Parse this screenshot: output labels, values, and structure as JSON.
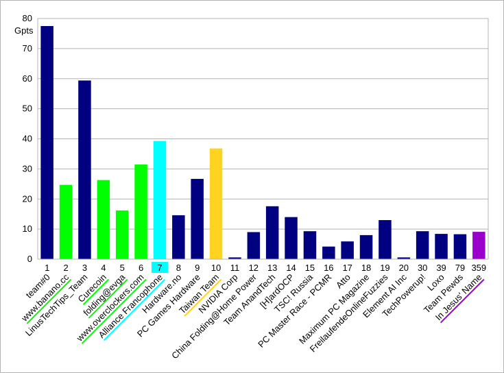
{
  "chart_data": {
    "type": "bar",
    "ylabel": "Gpts",
    "ylim": [
      0,
      80
    ],
    "yticks": [
      0,
      10,
      20,
      30,
      40,
      50,
      60,
      70,
      80
    ],
    "grid": true,
    "ranks": [
      "1",
      "2",
      "3",
      "4",
      "5",
      "6",
      "7",
      "8",
      "9",
      "10",
      "11",
      "12",
      "13",
      "14",
      "15",
      "16",
      "17",
      "18",
      "19",
      "20",
      "30",
      "39",
      "79",
      "359"
    ],
    "teams": [
      "team#0",
      "www.banano.cc",
      "LinusTechTips_Team",
      "Curecoin",
      "folding@evga",
      "www.overclockers.com",
      "Alliance Francophone",
      "Hardware.no",
      "PC Games Hardware",
      "Taiwan Team",
      "NVIDIA Corp",
      "China Folding@Home Power",
      "Team AnandTech",
      "[H]ardOCP",
      "TSC! Russia",
      "PC Master Race - PCMR",
      "Atto",
      "Maximum PC Magazine",
      "FreilaufendeOnlineFuzzies",
      "Element AI Inc",
      "TechPowerup!",
      "Loxo",
      "Team Pewds",
      "In Jesus' Name"
    ],
    "values": [
      77.5,
      24.7,
      59.4,
      26.3,
      16.2,
      31.5,
      39.3,
      14.6,
      26.7,
      36.8,
      0.6,
      9.0,
      17.6,
      14.0,
      9.3,
      4.2,
      5.9,
      8.0,
      13.0,
      0.6,
      9.3,
      8.4,
      8.3,
      9.1
    ],
    "bar_colors": [
      "#000080",
      "#00ff00",
      "#000080",
      "#00ff00",
      "#00ff00",
      "#00ff00",
      "#00ffff",
      "#000080",
      "#000080",
      "#ffd320",
      "#000080",
      "#000080",
      "#000080",
      "#000080",
      "#000080",
      "#000080",
      "#000080",
      "#000080",
      "#000080",
      "#000080",
      "#000080",
      "#000080",
      "#000080",
      "#9900cc"
    ],
    "underline_colors": [
      "",
      "#00ff00",
      "",
      "#00ff00",
      "#00ff00",
      "#00ff00",
      "#00ffff",
      "",
      "",
      "#ffd320",
      "",
      "",
      "",
      "",
      "",
      "",
      "",
      "",
      "",
      "",
      "",
      "",
      "",
      "#9900cc"
    ],
    "highlighted_rank_index": 6,
    "highlight_color": "#00ffff"
  }
}
